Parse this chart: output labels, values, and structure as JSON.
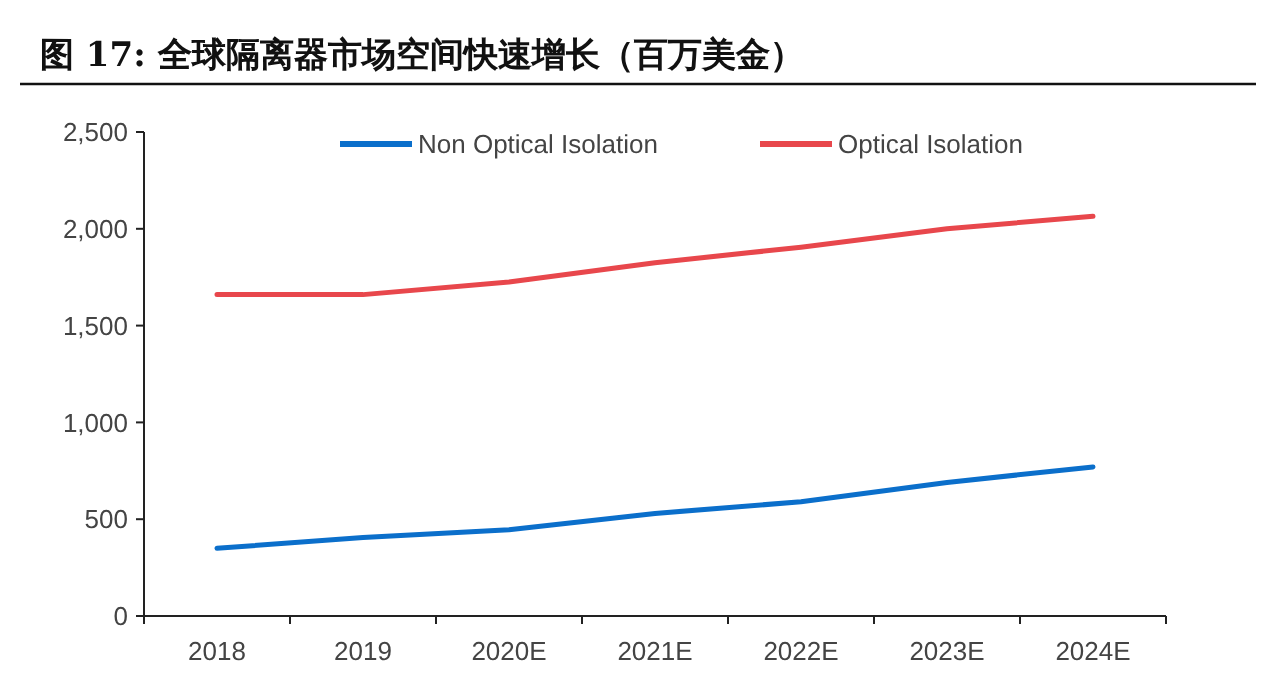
{
  "chart_data": {
    "type": "line",
    "title": "图 17:  全球隔离器市场空间快速增长（百万美金）",
    "categories": [
      "2018",
      "2019",
      "2020E",
      "2021E",
      "2022E",
      "2023E",
      "2024E"
    ],
    "series": [
      {
        "name": "Non Optical Isolation",
        "color": "#0b6fcb",
        "values": [
          350,
          405,
          445,
          530,
          590,
          690,
          770
        ]
      },
      {
        "name": "Optical Isolation",
        "color": "#e8474c",
        "values": [
          1660,
          1660,
          1725,
          1825,
          1905,
          2000,
          2065
        ]
      }
    ],
    "ylim": [
      0,
      2500
    ],
    "yticks": [
      0,
      {
        "value": 500,
        "label": "500"
      },
      {
        "value": 1000,
        "label": "1,000"
      },
      {
        "value": 1500,
        "label": "1,500"
      },
      {
        "value": 2000,
        "label": "2,000"
      },
      {
        "value": 2500,
        "label": "2,500"
      }
    ],
    "grid": false,
    "legend": "top",
    "marker": "none",
    "line_style": "solid"
  }
}
